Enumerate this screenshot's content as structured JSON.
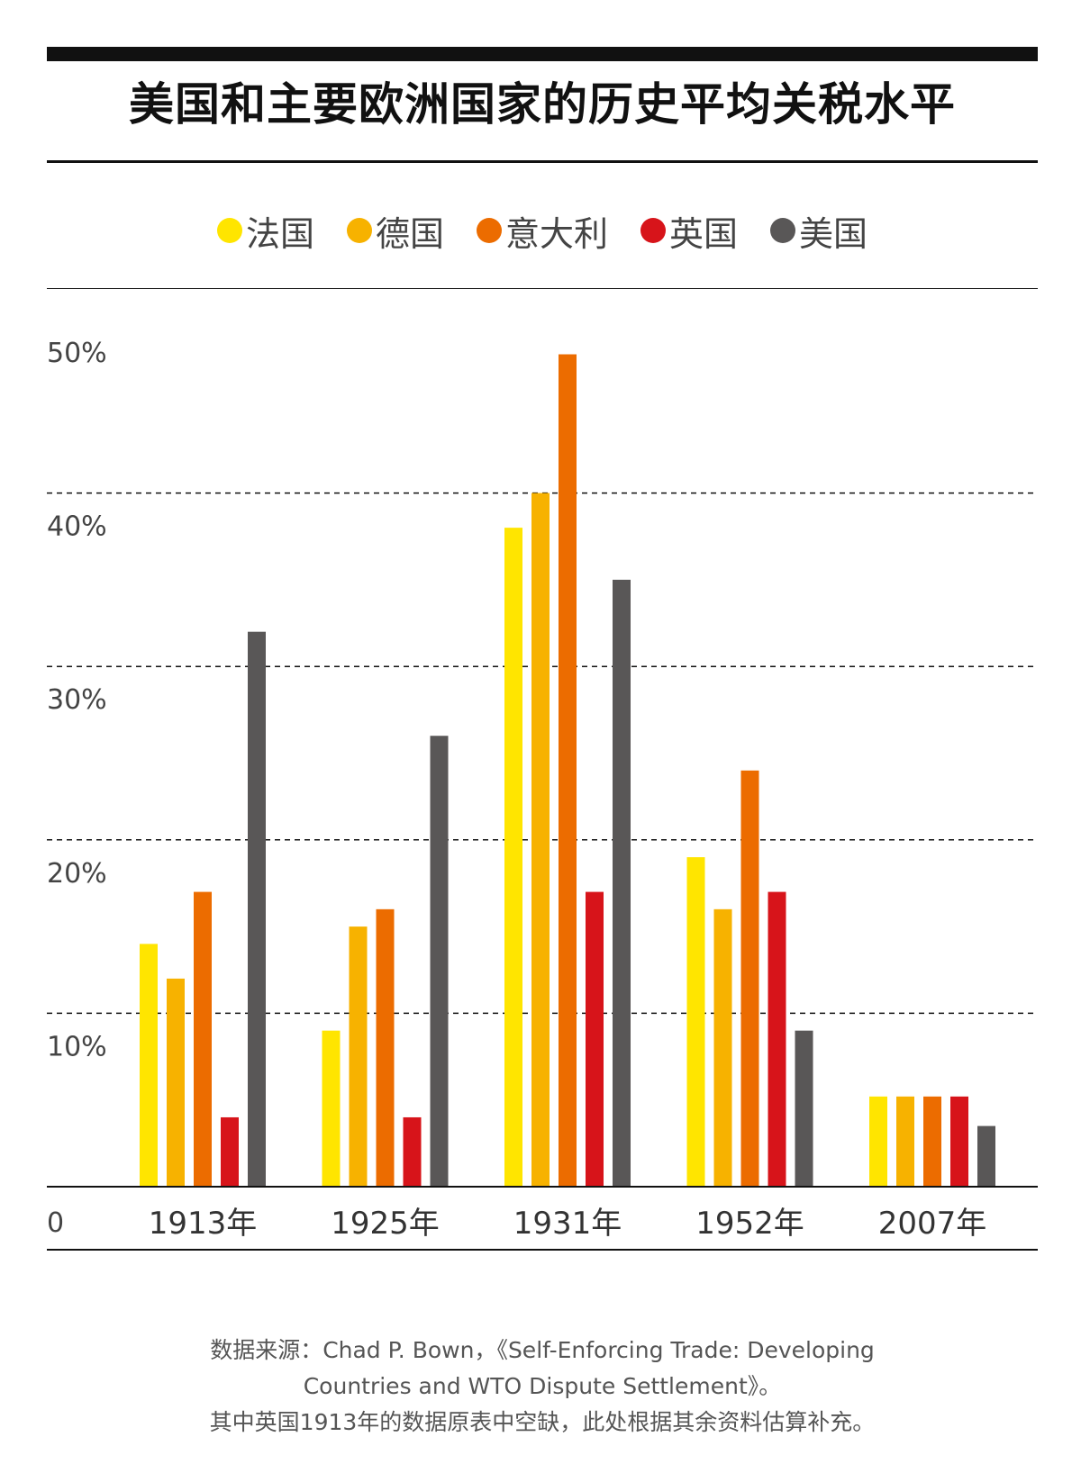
{
  "title": "美国和主要欧洲国家的历史平均关税水平",
  "legend": [
    {
      "label": "法国",
      "color": "#FFE500"
    },
    {
      "label": "德国",
      "color": "#F7B200"
    },
    {
      "label": "意大利",
      "color": "#EC6C00"
    },
    {
      "label": "英国",
      "color": "#D7141A"
    },
    {
      "label": "美国",
      "color": "#595757"
    }
  ],
  "footnote": {
    "line1": "数据来源：Chad P. Bown，《Self-Enforcing Trade: Developing",
    "line2": "Countries and WTO Dispute Settlement》。",
    "line3": "其中英国1913年的数据原表中空缺，此处根据其余资料估算补充。"
  },
  "chart_data": {
    "type": "bar",
    "title": "美国和主要欧洲国家的历史平均关税水平",
    "categories": [
      "1913年",
      "1925年",
      "1931年",
      "1952年",
      "2007年"
    ],
    "series": [
      {
        "name": "法国",
        "color": "#FFE500",
        "values": [
          14,
          9,
          38,
          19,
          5.2
        ]
      },
      {
        "name": "德国",
        "color": "#F7B200",
        "values": [
          12,
          15,
          40,
          16,
          5.2
        ]
      },
      {
        "name": "意大利",
        "color": "#EC6C00",
        "values": [
          17,
          16,
          48,
          24,
          5.2
        ]
      },
      {
        "name": "英国",
        "color": "#D7141A",
        "values": [
          4,
          4,
          17,
          17,
          5.2
        ]
      },
      {
        "name": "美国",
        "color": "#595757",
        "values": [
          32,
          26,
          35,
          9,
          3.5
        ]
      }
    ],
    "ylim": [
      0,
      50
    ],
    "yticks": [
      {
        "value": 10,
        "label": "10%"
      },
      {
        "value": 20,
        "label": "20%"
      },
      {
        "value": 30,
        "label": "30%"
      },
      {
        "value": 40,
        "label": "40%"
      },
      {
        "value": 50,
        "label": "50%"
      }
    ],
    "origin_label": "0",
    "grid": true,
    "legend_position": "top-center"
  }
}
